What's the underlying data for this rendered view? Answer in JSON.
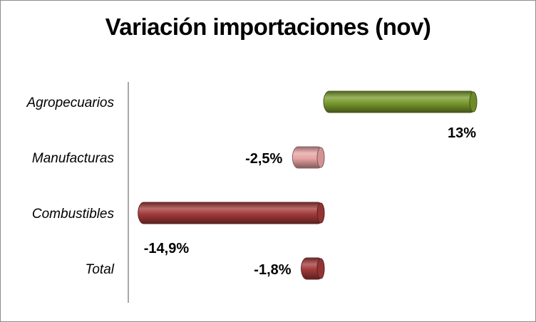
{
  "chart_data": {
    "type": "bar",
    "orientation": "horizontal",
    "title": "Variación importaciones (nov)",
    "categories": [
      "Agropecuarios",
      "Manufacturas",
      "Combustibles",
      "Total"
    ],
    "values": [
      13,
      -2.5,
      -14.9,
      -1.8
    ],
    "data_labels": [
      "13%",
      "-2,5%",
      "-14,9%",
      "-1,8%"
    ],
    "unit": "%",
    "colors": [
      "#7a9a2e",
      "#e8a3a3",
      "#a33a3a",
      "#a33a3a"
    ],
    "xlim": [
      -15,
      13
    ],
    "grid": false,
    "legend": "none",
    "bar_style": "3d-cylinder"
  }
}
